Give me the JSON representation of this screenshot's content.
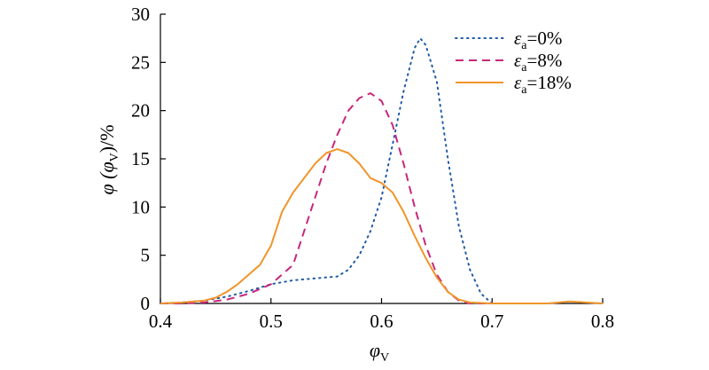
{
  "chart_data": {
    "type": "line",
    "xlabel": {
      "main": "φ",
      "sub": "V"
    },
    "ylabel": {
      "prefix": "φ (φ",
      "sub": "V",
      "suffix": ")/%"
    },
    "xlim": [
      0.4,
      0.8
    ],
    "ylim": [
      0,
      30
    ],
    "xticks": [
      0.4,
      0.5,
      0.6,
      0.7,
      0.8
    ],
    "xtick_labels": [
      "0.4",
      "0.5",
      "0.6",
      "0.7",
      "0.8"
    ],
    "yticks": [
      0,
      5,
      10,
      15,
      20,
      25,
      30
    ],
    "ytick_labels": [
      "0",
      "5",
      "10",
      "15",
      "20",
      "25",
      "30"
    ],
    "grid": false,
    "legend_position": "top-right",
    "series": [
      {
        "name": "ε_a=0%",
        "legend": {
          "main": "ε",
          "sub": "a",
          "value": "=0%"
        },
        "color": "#1f5aa6",
        "style": "dotted",
        "x": [
          0.4,
          0.42,
          0.44,
          0.46,
          0.48,
          0.5,
          0.52,
          0.54,
          0.56,
          0.57,
          0.58,
          0.59,
          0.6,
          0.61,
          0.62,
          0.63,
          0.635,
          0.64,
          0.65,
          0.66,
          0.67,
          0.68,
          0.69,
          0.7
        ],
        "y": [
          0,
          0.1,
          0.3,
          0.7,
          1.3,
          2.0,
          2.4,
          2.6,
          2.8,
          3.5,
          5.0,
          7.5,
          11.0,
          16.5,
          22.0,
          26.5,
          27.5,
          26.8,
          23.0,
          15.0,
          8.0,
          3.5,
          1.0,
          0
        ]
      },
      {
        "name": "ε_a=8%",
        "legend": {
          "main": "ε",
          "sub": "a",
          "value": "=8%"
        },
        "color": "#c8277a",
        "style": "dashed",
        "x": [
          0.4,
          0.42,
          0.44,
          0.46,
          0.48,
          0.5,
          0.52,
          0.53,
          0.54,
          0.55,
          0.56,
          0.57,
          0.58,
          0.59,
          0.6,
          0.61,
          0.62,
          0.63,
          0.64,
          0.65,
          0.66,
          0.67,
          0.68,
          0.7
        ],
        "y": [
          0,
          0,
          0.1,
          0.4,
          1.0,
          2.0,
          4.0,
          7.5,
          11.0,
          14.5,
          17.5,
          20.0,
          21.3,
          21.8,
          21.0,
          18.5,
          14.5,
          10.0,
          6.0,
          3.0,
          1.2,
          0.3,
          0,
          0
        ]
      },
      {
        "name": "ε_a=18%",
        "legend": {
          "main": "ε",
          "sub": "a",
          "value": "=18%"
        },
        "color": "#f0952a",
        "style": "solid",
        "x": [
          0.4,
          0.42,
          0.44,
          0.45,
          0.46,
          0.47,
          0.48,
          0.49,
          0.5,
          0.51,
          0.52,
          0.53,
          0.54,
          0.55,
          0.56,
          0.57,
          0.58,
          0.59,
          0.6,
          0.61,
          0.62,
          0.63,
          0.64,
          0.65,
          0.66,
          0.67,
          0.68,
          0.7,
          0.75,
          0.77,
          0.8
        ],
        "y": [
          0,
          0.1,
          0.3,
          0.6,
          1.2,
          2.0,
          3.0,
          4.0,
          6.0,
          9.5,
          11.5,
          13.0,
          14.5,
          15.6,
          16.0,
          15.6,
          14.5,
          13.0,
          12.5,
          11.5,
          9.5,
          7.0,
          4.7,
          2.7,
          1.2,
          0.4,
          0.1,
          0,
          0,
          0.2,
          0
        ]
      }
    ]
  }
}
